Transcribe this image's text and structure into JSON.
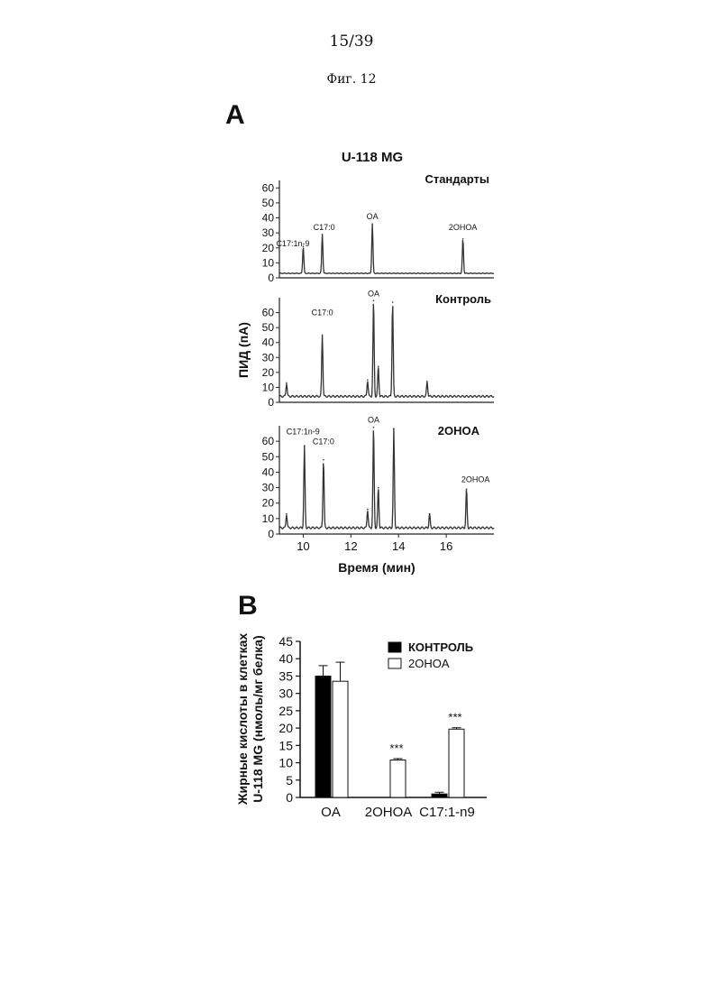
{
  "header": {
    "page_number": "15/39",
    "figure_label": "Фиг. 12"
  },
  "panel_a": {
    "letter": "A",
    "title": "U-118 MG",
    "ylabel": "ПИД (пА)",
    "xlabel": "Время (мин)",
    "x_ticks": [
      10,
      12,
      14,
      16
    ]
  },
  "panel_b": {
    "letter": "B",
    "ylabel_line1": "Жирные кислоты в клетках",
    "ylabel_line2": "U-118 MG (нмоль/мг белка)"
  },
  "chart_data": [
    {
      "type": "line",
      "title": "Стандарты",
      "xlim": [
        9,
        18
      ],
      "ylim": [
        0,
        65
      ],
      "y_ticks": [
        0,
        10,
        20,
        30,
        40,
        50,
        60
      ],
      "baseline": 3,
      "peaks": [
        {
          "x": 10.0,
          "y": 21
        },
        {
          "x": 10.8,
          "y": 29
        },
        {
          "x": 12.9,
          "y": 36
        },
        {
          "x": 16.7,
          "y": 26
        }
      ],
      "annotations": [
        {
          "text": "C17:1n-9",
          "x": 10.0,
          "y": 21
        },
        {
          "text": "C17:0",
          "x": 10.8,
          "y": 29
        },
        {
          "text": "OA",
          "x": 12.9,
          "y": 36
        },
        {
          "text": "2OHOA",
          "x": 16.7,
          "y": 26
        }
      ]
    },
    {
      "type": "line",
      "title": "Контроль",
      "xlim": [
        9,
        18
      ],
      "ylim": [
        0,
        70
      ],
      "y_ticks": [
        0,
        10,
        20,
        30,
        40,
        50,
        60
      ],
      "baseline": 4,
      "peaks": [
        {
          "x": 9.3,
          "y": 13
        },
        {
          "x": 10.8,
          "y": 45
        },
        {
          "x": 12.7,
          "y": 15
        },
        {
          "x": 12.95,
          "y": 68
        },
        {
          "x": 13.15,
          "y": 24
        },
        {
          "x": 13.75,
          "y": 67
        },
        {
          "x": 15.2,
          "y": 14
        }
      ],
      "annotations": [
        {
          "text": "OA",
          "x": 12.95,
          "y": 68
        },
        {
          "text": "C17:0",
          "x": 10.8,
          "y": 45
        }
      ]
    },
    {
      "type": "line",
      "title": "2OHOA",
      "xlim": [
        9,
        18
      ],
      "ylim": [
        0,
        70
      ],
      "y_ticks": [
        0,
        10,
        20,
        30,
        40,
        50,
        60
      ],
      "x_ticks": [
        10,
        12,
        14,
        16
      ],
      "baseline": 4,
      "peaks": [
        {
          "x": 9.3,
          "y": 13
        },
        {
          "x": 10.05,
          "y": 57
        },
        {
          "x": 10.85,
          "y": 48
        },
        {
          "x": 12.7,
          "y": 16
        },
        {
          "x": 12.95,
          "y": 69
        },
        {
          "x": 13.15,
          "y": 30
        },
        {
          "x": 13.8,
          "y": 68
        },
        {
          "x": 15.3,
          "y": 13
        },
        {
          "x": 16.85,
          "y": 29
        }
      ],
      "annotations": [
        {
          "text": "OA",
          "x": 12.95,
          "y": 69
        },
        {
          "text": "C17:1n-9",
          "x": 10.05,
          "y": 57
        },
        {
          "text": "C17:0",
          "x": 10.85,
          "y": 48
        },
        {
          "text": "2OHOA",
          "x": 16.85,
          "y": 29
        }
      ]
    },
    {
      "type": "bar",
      "categories": [
        "OA",
        "2OHOA",
        "C17:1-n9"
      ],
      "series": [
        {
          "name": "КОНТРОЛЬ",
          "values": [
            35,
            0,
            1
          ],
          "errors": [
            3,
            0,
            0.5
          ],
          "color": "#000000"
        },
        {
          "name": "2OHOA",
          "values": [
            33.5,
            10.8,
            19.7
          ],
          "errors": [
            5.5,
            0.4,
            0.4
          ],
          "color": "#ffffff"
        }
      ],
      "significance": [
        "",
        "***",
        "***"
      ],
      "ylim": [
        0,
        45
      ],
      "y_ticks": [
        0,
        5,
        10,
        15,
        20,
        25,
        30,
        35,
        40,
        45
      ],
      "legend_position": "top-right"
    }
  ]
}
